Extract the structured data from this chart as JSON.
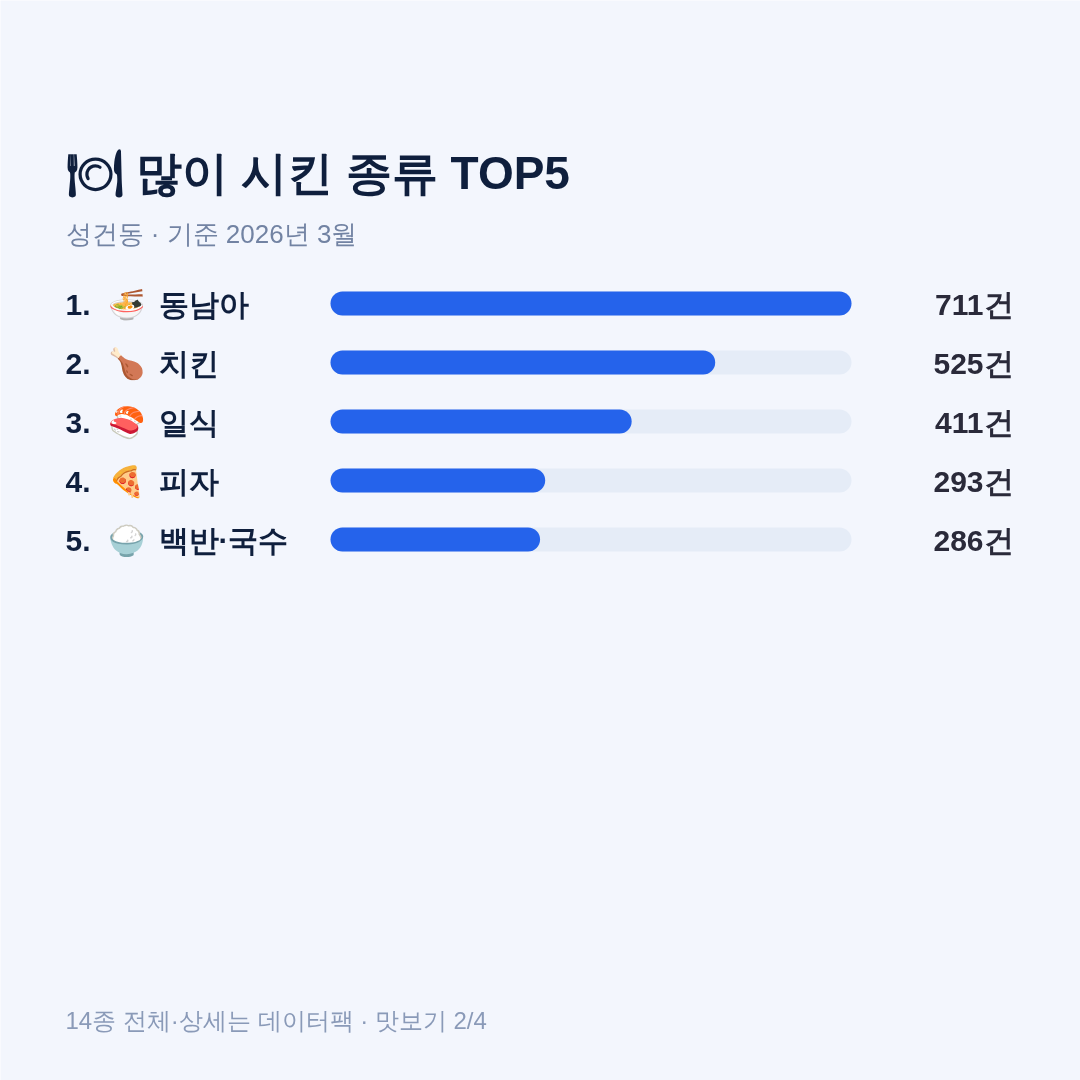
{
  "chart_data": {
    "type": "bar",
    "orientation": "horizontal",
    "title": "🍽 많이 시킨 종류 TOP5",
    "subtitle": "성건동 · 기준 2026년 3월",
    "categories": [
      "1. 🍜 동남아",
      "2. 🍗 치킨",
      "3. 🍣 일식",
      "4. 🍕 피자",
      "5. 🍚 백반·국수"
    ],
    "values": [
      711,
      525,
      411,
      293,
      286
    ],
    "color": "#2563eb",
    "value_labels": [
      "711건",
      "525건",
      "411건",
      "293건",
      "286건"
    ],
    "xlim": [
      0,
      711
    ],
    "annotations": [
      "14종 전체·상세는 데이터팩 · 맛보기 2/4"
    ]
  }
}
